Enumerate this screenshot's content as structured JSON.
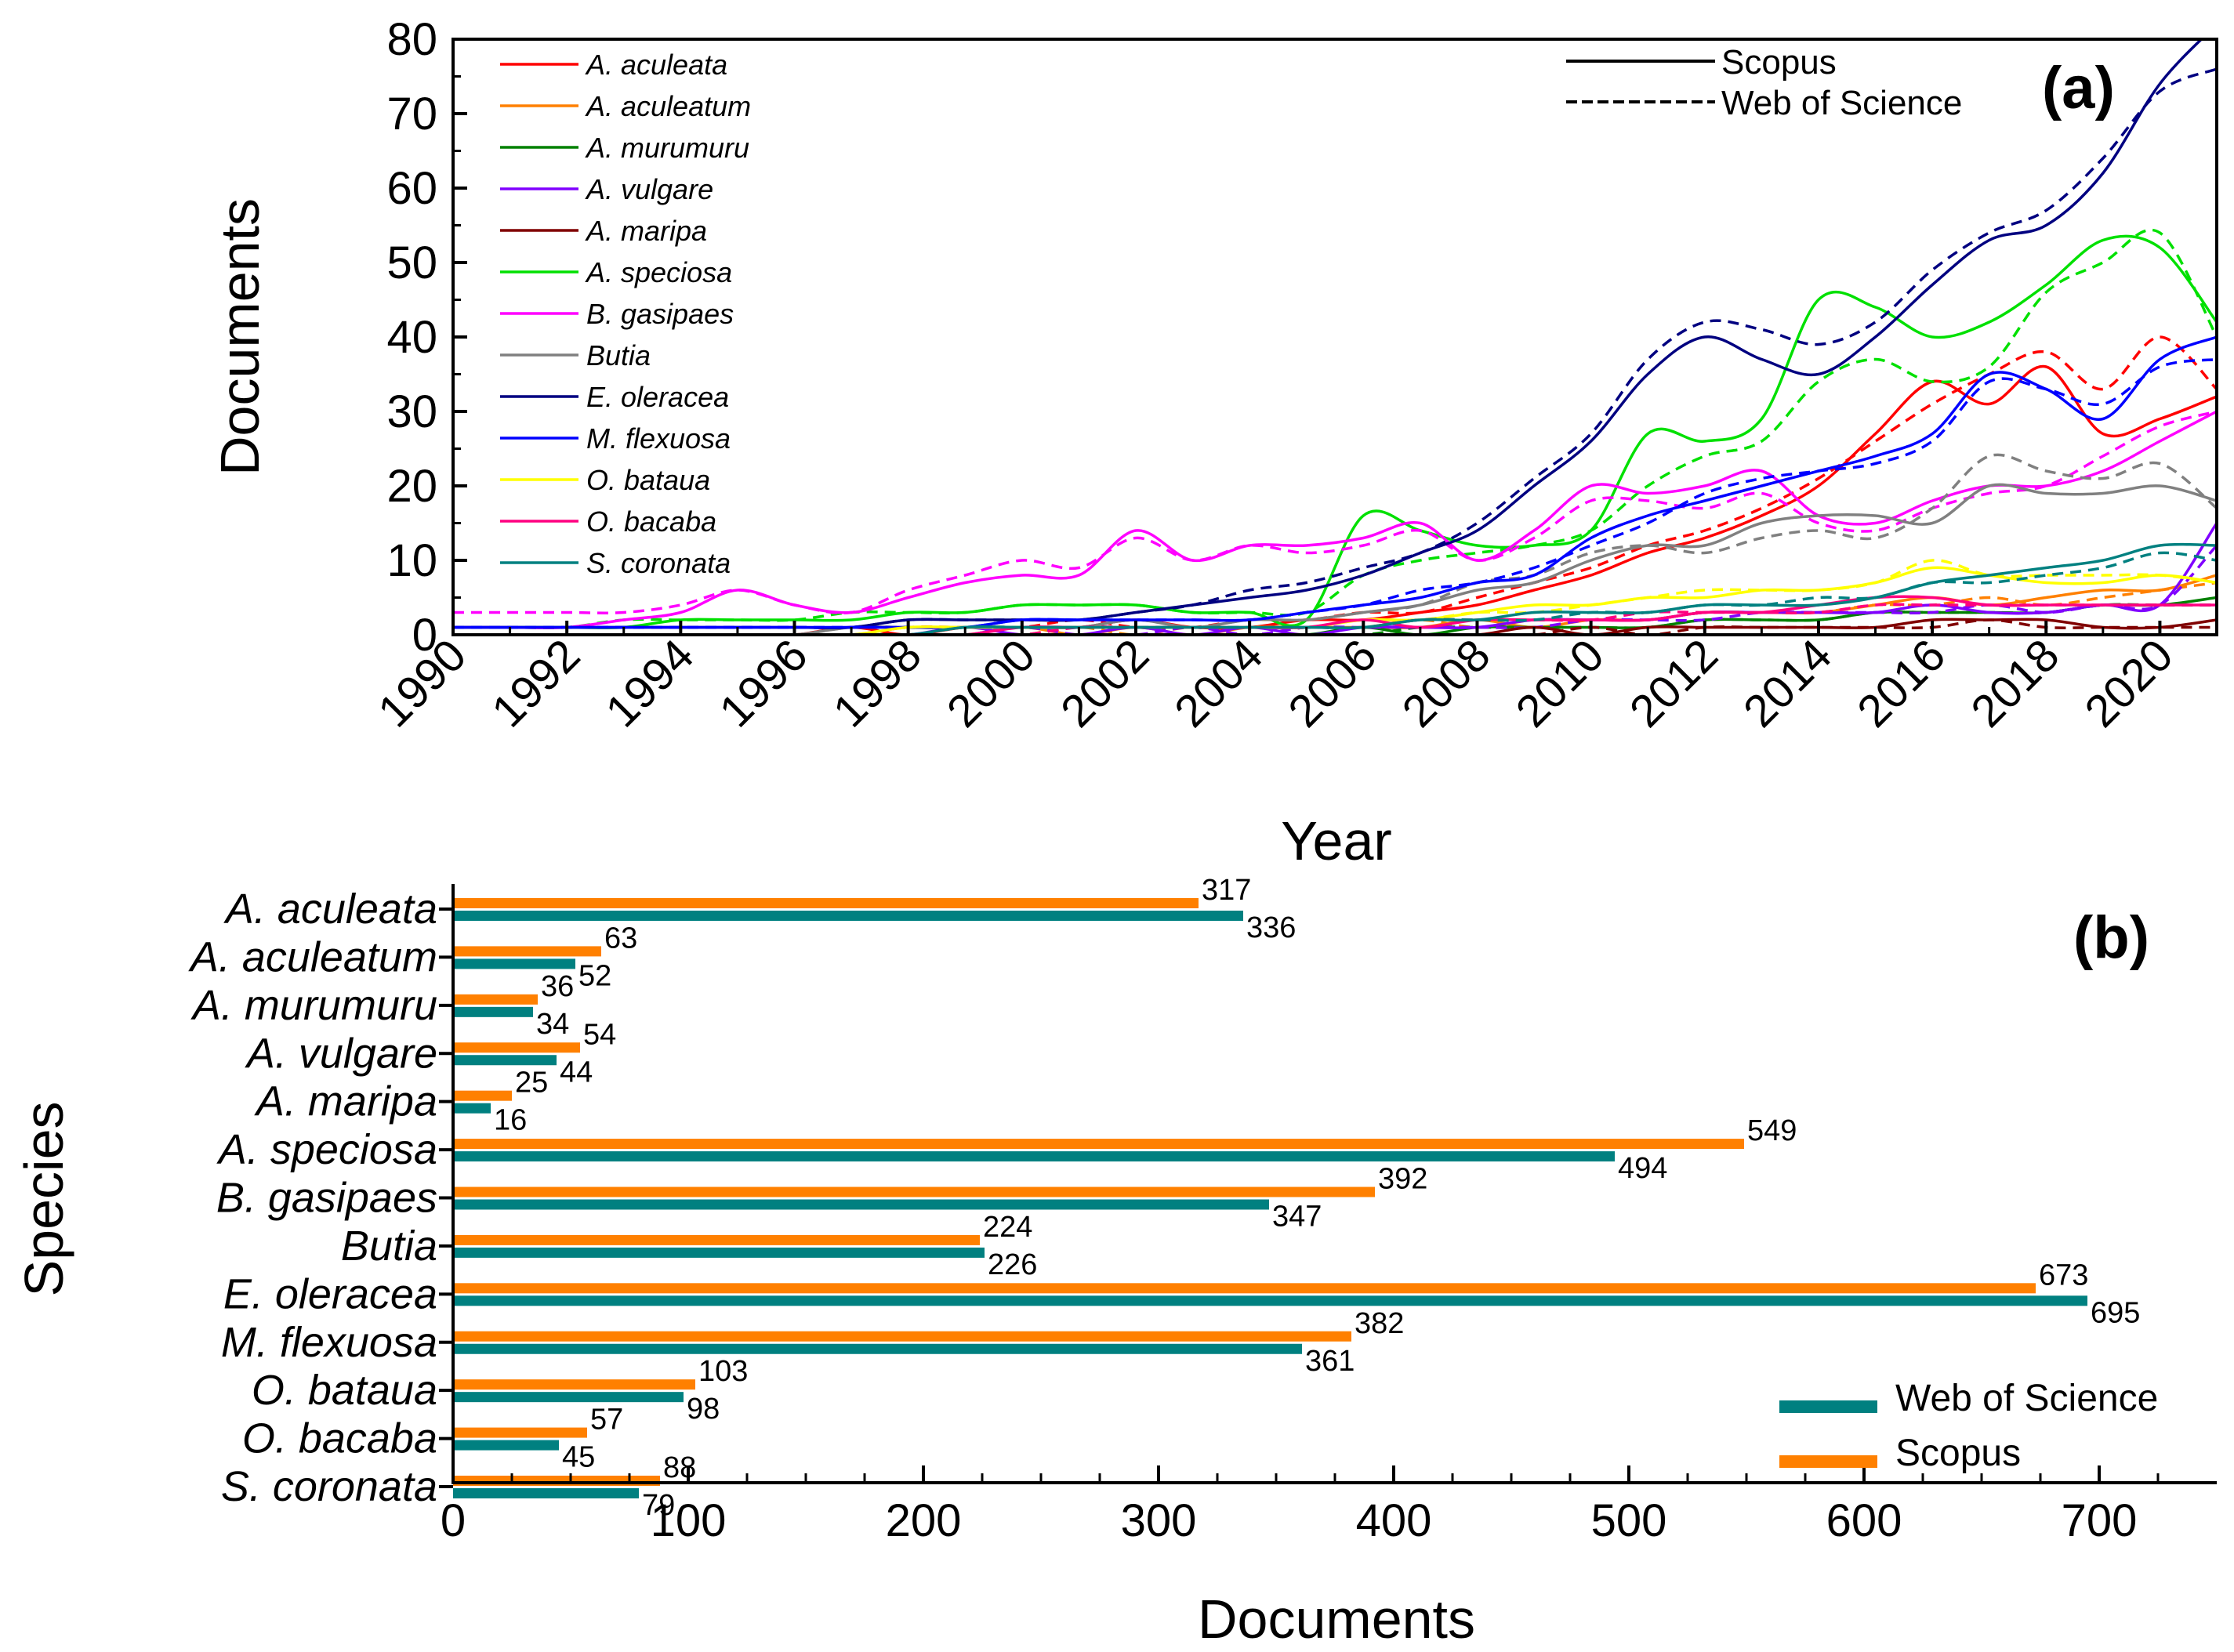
{
  "chart_data": [
    {
      "type": "line",
      "panel_label": "(a)",
      "xlabel": "Year",
      "ylabel": "Documents",
      "xlim": [
        1990,
        2021
      ],
      "ylim": [
        0,
        80
      ],
      "x_ticks": [
        "1990",
        "1992",
        "1994",
        "1996",
        "1998",
        "2000",
        "2002",
        "2004",
        "2006",
        "2008",
        "2010",
        "2012",
        "2014",
        "2016",
        "2018",
        "2020"
      ],
      "y_ticks": [
        "0",
        "10",
        "20",
        "30",
        "40",
        "50",
        "60",
        "70",
        "80"
      ],
      "style_legend": [
        {
          "label": "Scopus",
          "dash": "solid"
        },
        {
          "label": "Web of Science",
          "dash": "dashed"
        }
      ],
      "x": [
        1990,
        1991,
        1992,
        1993,
        1994,
        1995,
        1996,
        1997,
        1998,
        1999,
        2000,
        2001,
        2002,
        2003,
        2004,
        2005,
        2006,
        2007,
        2008,
        2009,
        2010,
        2011,
        2012,
        2013,
        2014,
        2015,
        2016,
        2017,
        2018,
        2019,
        2020,
        2021
      ],
      "series": [
        {
          "name": "A. aculeata",
          "color": "#ff0000",
          "scopus": [
            0,
            0,
            0,
            0,
            0,
            0,
            0,
            1,
            0,
            1,
            1,
            1,
            2,
            1,
            1,
            2,
            2,
            3,
            4,
            6,
            8,
            11,
            13,
            16,
            20,
            27,
            34,
            31,
            36,
            27,
            29,
            32
          ],
          "wos": [
            0,
            0,
            0,
            0,
            0,
            0,
            0,
            0,
            1,
            1,
            1,
            2,
            1,
            1,
            2,
            2,
            3,
            3,
            5,
            7,
            9,
            12,
            14,
            17,
            21,
            26,
            31,
            35,
            38,
            33,
            40,
            33
          ]
        },
        {
          "name": "A. aculeatum",
          "color": "#ff8000",
          "scopus": [
            0,
            0,
            0,
            0,
            0,
            0,
            0,
            0,
            0,
            0,
            1,
            0,
            1,
            0,
            1,
            1,
            1,
            1,
            2,
            1,
            2,
            2,
            3,
            3,
            3,
            4,
            5,
            4,
            5,
            6,
            6,
            8
          ],
          "wos": [
            0,
            0,
            0,
            0,
            0,
            0,
            0,
            0,
            0,
            0,
            0,
            1,
            0,
            1,
            0,
            1,
            1,
            2,
            1,
            2,
            2,
            2,
            3,
            3,
            3,
            4,
            4,
            5,
            4,
            5,
            6,
            7
          ]
        },
        {
          "name": "A. murumuru",
          "color": "#008000",
          "scopus": [
            0,
            0,
            0,
            0,
            0,
            0,
            0,
            0,
            0,
            0,
            0,
            0,
            0,
            0,
            0,
            0,
            1,
            0,
            1,
            1,
            1,
            1,
            2,
            2,
            2,
            3,
            3,
            3,
            3,
            4,
            4,
            5
          ],
          "wos": [
            0,
            0,
            0,
            0,
            0,
            0,
            0,
            0,
            0,
            0,
            0,
            0,
            0,
            0,
            0,
            0,
            0,
            1,
            1,
            1,
            1,
            1,
            2,
            2,
            2,
            3,
            3,
            3,
            3,
            4,
            4,
            4
          ]
        },
        {
          "name": "A. vulgare",
          "color": "#8000ff",
          "scopus": [
            0,
            0,
            0,
            0,
            0,
            0,
            0,
            0,
            0,
            1,
            0,
            0,
            1,
            0,
            1,
            0,
            1,
            1,
            1,
            2,
            2,
            2,
            3,
            3,
            3,
            3,
            4,
            3,
            3,
            4,
            4,
            15
          ],
          "wos": [
            0,
            0,
            0,
            0,
            0,
            0,
            0,
            0,
            0,
            0,
            1,
            0,
            0,
            1,
            0,
            1,
            1,
            1,
            1,
            1,
            2,
            2,
            2,
            3,
            3,
            3,
            3,
            4,
            3,
            4,
            4,
            12
          ]
        },
        {
          "name": "A. maripa",
          "color": "#800000",
          "scopus": [
            0,
            0,
            0,
            0,
            0,
            0,
            0,
            0,
            0,
            0,
            0,
            0,
            0,
            0,
            0,
            0,
            0,
            0,
            0,
            1,
            0,
            1,
            1,
            1,
            1,
            1,
            2,
            2,
            2,
            1,
            1,
            2
          ],
          "wos": [
            0,
            0,
            0,
            0,
            0,
            0,
            0,
            0,
            0,
            0,
            0,
            0,
            0,
            0,
            0,
            0,
            0,
            0,
            0,
            0,
            1,
            0,
            1,
            1,
            1,
            1,
            1,
            2,
            1,
            1,
            1,
            1
          ]
        },
        {
          "name": "A. speciosa",
          "color": "#00e000",
          "scopus": [
            1,
            1,
            1,
            1,
            2,
            2,
            2,
            2,
            3,
            3,
            4,
            4,
            4,
            3,
            3,
            2,
            16,
            14,
            12,
            12,
            14,
            27,
            26,
            29,
            45,
            44,
            40,
            42,
            47,
            53,
            52,
            42
          ],
          "wos": [
            1,
            1,
            1,
            2,
            2,
            2,
            2,
            3,
            3,
            3,
            4,
            4,
            4,
            3,
            3,
            3,
            8,
            10,
            11,
            12,
            14,
            20,
            24,
            26,
            34,
            37,
            34,
            36,
            46,
            50,
            54,
            40
          ]
        },
        {
          "name": "B. gasipaes",
          "color": "#ff00ff",
          "scopus": [
            1,
            1,
            1,
            2,
            3,
            6,
            4,
            3,
            5,
            7,
            8,
            8,
            14,
            10,
            12,
            12,
            13,
            15,
            10,
            14,
            20,
            19,
            20,
            22,
            16,
            15,
            18,
            20,
            20,
            22,
            26,
            30
          ],
          "wos": [
            3,
            3,
            3,
            3,
            4,
            6,
            4,
            3,
            6,
            8,
            10,
            9,
            13,
            10,
            12,
            11,
            12,
            14,
            10,
            13,
            18,
            18,
            17,
            19,
            15,
            14,
            17,
            19,
            20,
            24,
            28,
            30
          ]
        },
        {
          "name": "Butia",
          "color": "#808080",
          "scopus": [
            0,
            0,
            0,
            0,
            0,
            0,
            0,
            1,
            1,
            1,
            1,
            1,
            2,
            1,
            2,
            2,
            3,
            4,
            6,
            7,
            10,
            12,
            12,
            15,
            16,
            16,
            15,
            20,
            19,
            19,
            20,
            18
          ],
          "wos": [
            0,
            0,
            0,
            0,
            0,
            0,
            0,
            1,
            1,
            1,
            1,
            1,
            2,
            1,
            2,
            2,
            3,
            4,
            7,
            8,
            11,
            12,
            11,
            13,
            14,
            13,
            17,
            24,
            22,
            21,
            23,
            17
          ]
        },
        {
          "name": "E. oleracea",
          "color": "#000080",
          "scopus": [
            1,
            1,
            1,
            1,
            1,
            1,
            1,
            1,
            2,
            2,
            2,
            2,
            3,
            4,
            5,
            6,
            8,
            11,
            14,
            20,
            26,
            35,
            40,
            37,
            35,
            40,
            47,
            53,
            55,
            62,
            74,
            82
          ],
          "wos": [
            1,
            1,
            1,
            1,
            1,
            1,
            1,
            1,
            2,
            2,
            2,
            2,
            3,
            4,
            6,
            7,
            9,
            11,
            15,
            21,
            27,
            37,
            42,
            41,
            39,
            42,
            49,
            54,
            57,
            64,
            73,
            76
          ]
        },
        {
          "name": "M. flexuosa",
          "color": "#0000ff",
          "scopus": [
            1,
            1,
            1,
            1,
            1,
            1,
            1,
            1,
            1,
            1,
            2,
            2,
            2,
            2,
            2,
            3,
            4,
            5,
            7,
            8,
            13,
            16,
            18,
            20,
            22,
            24,
            27,
            35,
            33,
            29,
            37,
            40
          ],
          "wos": [
            1,
            1,
            1,
            1,
            1,
            1,
            1,
            1,
            1,
            1,
            2,
            2,
            2,
            2,
            2,
            3,
            4,
            6,
            7,
            9,
            12,
            15,
            19,
            21,
            22,
            23,
            26,
            34,
            33,
            31,
            36,
            37
          ]
        },
        {
          "name": "O. bataua",
          "color": "#ffff00",
          "scopus": [
            0,
            0,
            0,
            0,
            0,
            0,
            0,
            0,
            1,
            1,
            1,
            1,
            1,
            1,
            1,
            1,
            2,
            2,
            3,
            4,
            4,
            5,
            5,
            6,
            6,
            7,
            9,
            8,
            7,
            7,
            8,
            7
          ],
          "wos": [
            0,
            0,
            0,
            0,
            0,
            0,
            0,
            0,
            0,
            1,
            1,
            1,
            1,
            1,
            1,
            1,
            2,
            2,
            3,
            3,
            4,
            5,
            6,
            6,
            6,
            7,
            10,
            8,
            8,
            8,
            8,
            7
          ]
        },
        {
          "name": "O. bacaba",
          "color": "#ff0080",
          "scopus": [
            0,
            0,
            0,
            0,
            0,
            0,
            0,
            0,
            0,
            0,
            1,
            1,
            1,
            1,
            1,
            1,
            2,
            1,
            2,
            2,
            2,
            2,
            3,
            3,
            4,
            5,
            5,
            4,
            4,
            4,
            4,
            4
          ],
          "wos": [
            0,
            0,
            0,
            0,
            0,
            0,
            0,
            0,
            0,
            0,
            0,
            1,
            1,
            1,
            1,
            1,
            1,
            2,
            2,
            2,
            2,
            3,
            3,
            3,
            3,
            4,
            4,
            4,
            4,
            4,
            4,
            4
          ]
        },
        {
          "name": "S. coronata",
          "color": "#008080",
          "scopus": [
            0,
            0,
            0,
            0,
            0,
            0,
            0,
            0,
            0,
            1,
            1,
            1,
            1,
            1,
            1,
            1,
            1,
            2,
            2,
            3,
            3,
            3,
            4,
            4,
            4,
            5,
            7,
            8,
            9,
            10,
            12,
            12
          ],
          "wos": [
            0,
            0,
            0,
            0,
            0,
            0,
            0,
            0,
            0,
            1,
            1,
            1,
            1,
            1,
            1,
            1,
            1,
            2,
            2,
            2,
            3,
            3,
            4,
            4,
            5,
            5,
            7,
            7,
            8,
            9,
            11,
            10
          ]
        }
      ]
    },
    {
      "type": "bar",
      "orientation": "horizontal",
      "panel_label": "(b)",
      "xlabel": "Documents",
      "ylabel": "Species",
      "xlim": [
        0,
        750
      ],
      "x_ticks": [
        "0",
        "100",
        "200",
        "300",
        "400",
        "500",
        "600",
        "700"
      ],
      "categories": [
        "A. aculeata",
        "A. aculeatum",
        "A. murumuru",
        "A. vulgare",
        "A. maripa",
        "A. speciosa",
        "B. gasipaes",
        "Butia",
        "E. oleracea",
        "M. flexuosa",
        "O. bataua",
        "O. bacaba",
        "S. coronata"
      ],
      "series": [
        {
          "name": "Scopus",
          "color": "#ff8000",
          "values": [
            317,
            63,
            36,
            54,
            25,
            549,
            392,
            224,
            673,
            382,
            103,
            57,
            88
          ]
        },
        {
          "name": "Web of Science",
          "color": "#008080",
          "values": [
            336,
            52,
            34,
            44,
            16,
            494,
            347,
            226,
            695,
            361,
            98,
            45,
            79
          ]
        }
      ],
      "legend": [
        "Web of Science",
        "Scopus"
      ]
    }
  ]
}
